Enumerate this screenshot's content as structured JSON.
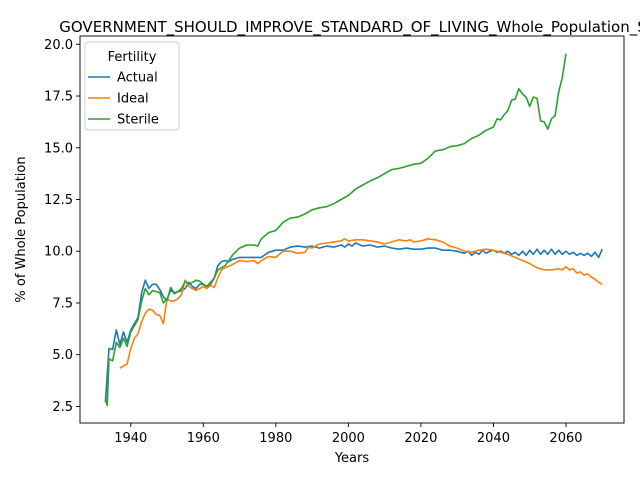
{
  "chart_data": {
    "type": "line",
    "title": "GOVERNMENT_SHOULD_IMPROVE_STANDARD_OF_LIVING_Whole_Population_S",
    "xlabel": "Years",
    "ylabel": "% of Whole Population",
    "xlim": [
      1926,
      2076
    ],
    "ylim": [
      1.7,
      20.4
    ],
    "xticks": [
      1940,
      1960,
      1980,
      2000,
      2020,
      2040,
      2060
    ],
    "yticks": [
      2.5,
      5.0,
      7.5,
      10.0,
      12.5,
      15.0,
      17.5,
      20.0
    ],
    "ytick_labels": [
      "2.5",
      "5.0",
      "7.5",
      "10.0",
      "12.5",
      "15.0",
      "17.5",
      "20.0"
    ],
    "grid": false,
    "legend": {
      "title": "Fertility",
      "placement": "top-left"
    },
    "series": [
      {
        "name": "Actual",
        "color": "#1f77b4",
        "points": [
          [
            1933,
            2.7
          ],
          [
            1934,
            5.3
          ],
          [
            1935,
            5.25
          ],
          [
            1936,
            6.2
          ],
          [
            1937,
            5.5
          ],
          [
            1938,
            6.1
          ],
          [
            1939,
            5.6
          ],
          [
            1940,
            6.2
          ],
          [
            1941,
            6.5
          ],
          [
            1942,
            6.8
          ],
          [
            1943,
            8.0
          ],
          [
            1944,
            8.6
          ],
          [
            1945,
            8.2
          ],
          [
            1946,
            8.4
          ],
          [
            1947,
            8.4
          ],
          [
            1948,
            8.15
          ],
          [
            1949,
            7.8
          ],
          [
            1950,
            7.6
          ],
          [
            1951,
            8.25
          ],
          [
            1952,
            7.95
          ],
          [
            1953,
            8.05
          ],
          [
            1954,
            8.1
          ],
          [
            1955,
            8.2
          ],
          [
            1956,
            8.5
          ],
          [
            1957,
            8.3
          ],
          [
            1958,
            8.2
          ],
          [
            1959,
            8.4
          ],
          [
            1960,
            8.4
          ],
          [
            1961,
            8.3
          ],
          [
            1962,
            8.4
          ],
          [
            1963,
            8.7
          ],
          [
            1964,
            9.3
          ],
          [
            1965,
            9.5
          ],
          [
            1966,
            9.55
          ],
          [
            1967,
            9.5
          ],
          [
            1968,
            9.6
          ],
          [
            1969,
            9.65
          ],
          [
            1970,
            9.7
          ],
          [
            1972,
            9.7
          ],
          [
            1974,
            9.7
          ],
          [
            1976,
            9.7
          ],
          [
            1978,
            9.95
          ],
          [
            1980,
            10.05
          ],
          [
            1982,
            10.05
          ],
          [
            1984,
            10.2
          ],
          [
            1986,
            10.25
          ],
          [
            1988,
            10.2
          ],
          [
            1990,
            10.25
          ],
          [
            1992,
            10.15
          ],
          [
            1994,
            10.25
          ],
          [
            1996,
            10.2
          ],
          [
            1998,
            10.3
          ],
          [
            1999,
            10.2
          ],
          [
            2000,
            10.35
          ],
          [
            2001,
            10.25
          ],
          [
            2002,
            10.4
          ],
          [
            2004,
            10.25
          ],
          [
            2006,
            10.3
          ],
          [
            2008,
            10.2
          ],
          [
            2010,
            10.25
          ],
          [
            2012,
            10.15
          ],
          [
            2014,
            10.1
          ],
          [
            2016,
            10.15
          ],
          [
            2018,
            10.1
          ],
          [
            2020,
            10.1
          ],
          [
            2022,
            10.15
          ],
          [
            2024,
            10.15
          ],
          [
            2026,
            10.05
          ],
          [
            2028,
            10.05
          ],
          [
            2030,
            10.0
          ],
          [
            2031,
            9.95
          ],
          [
            2032,
            9.9
          ],
          [
            2033,
            10.0
          ],
          [
            2034,
            9.8
          ],
          [
            2035,
            9.95
          ],
          [
            2036,
            9.85
          ],
          [
            2037,
            10.05
          ],
          [
            2038,
            9.9
          ],
          [
            2039,
            10.0
          ],
          [
            2040,
            10.05
          ],
          [
            2041,
            9.95
          ],
          [
            2042,
            10.0
          ],
          [
            2043,
            9.9
          ],
          [
            2044,
            10.0
          ],
          [
            2045,
            9.85
          ],
          [
            2046,
            9.95
          ],
          [
            2047,
            9.8
          ],
          [
            2048,
            10.0
          ],
          [
            2049,
            9.8
          ],
          [
            2050,
            10.05
          ],
          [
            2051,
            9.85
          ],
          [
            2052,
            10.1
          ],
          [
            2053,
            9.85
          ],
          [
            2054,
            10.05
          ],
          [
            2055,
            9.85
          ],
          [
            2056,
            10.1
          ],
          [
            2057,
            9.85
          ],
          [
            2058,
            10.05
          ],
          [
            2059,
            9.85
          ],
          [
            2060,
            10.0
          ],
          [
            2061,
            9.85
          ],
          [
            2062,
            9.95
          ],
          [
            2063,
            9.8
          ],
          [
            2064,
            9.9
          ],
          [
            2065,
            9.8
          ],
          [
            2066,
            9.9
          ],
          [
            2067,
            9.75
          ],
          [
            2068,
            9.95
          ],
          [
            2069,
            9.7
          ],
          [
            2070,
            10.1
          ]
        ]
      },
      {
        "name": "Ideal",
        "color": "#ff7f0e",
        "points": [
          [
            1937,
            4.35
          ],
          [
            1938,
            4.45
          ],
          [
            1939,
            4.55
          ],
          [
            1940,
            5.3
          ],
          [
            1941,
            5.8
          ],
          [
            1942,
            6.0
          ],
          [
            1943,
            6.6
          ],
          [
            1944,
            7.0
          ],
          [
            1945,
            7.2
          ],
          [
            1946,
            7.15
          ],
          [
            1947,
            6.95
          ],
          [
            1948,
            6.9
          ],
          [
            1949,
            6.5
          ],
          [
            1950,
            7.7
          ],
          [
            1951,
            7.6
          ],
          [
            1952,
            7.6
          ],
          [
            1953,
            7.7
          ],
          [
            1954,
            7.9
          ],
          [
            1955,
            8.6
          ],
          [
            1956,
            8.3
          ],
          [
            1957,
            8.2
          ],
          [
            1958,
            8.1
          ],
          [
            1959,
            8.2
          ],
          [
            1960,
            8.3
          ],
          [
            1961,
            8.2
          ],
          [
            1962,
            8.35
          ],
          [
            1963,
            8.25
          ],
          [
            1964,
            8.7
          ],
          [
            1965,
            9.1
          ],
          [
            1966,
            9.2
          ],
          [
            1968,
            9.35
          ],
          [
            1970,
            9.55
          ],
          [
            1972,
            9.5
          ],
          [
            1974,
            9.55
          ],
          [
            1975,
            9.4
          ],
          [
            1976,
            9.55
          ],
          [
            1978,
            9.75
          ],
          [
            1980,
            9.7
          ],
          [
            1982,
            10.0
          ],
          [
            1984,
            10.0
          ],
          [
            1986,
            9.9
          ],
          [
            1988,
            9.95
          ],
          [
            1989,
            10.2
          ],
          [
            1990,
            10.15
          ],
          [
            1992,
            10.35
          ],
          [
            1994,
            10.4
          ],
          [
            1996,
            10.45
          ],
          [
            1998,
            10.5
          ],
          [
            1999,
            10.6
          ],
          [
            2000,
            10.5
          ],
          [
            2002,
            10.55
          ],
          [
            2004,
            10.55
          ],
          [
            2006,
            10.5
          ],
          [
            2008,
            10.45
          ],
          [
            2010,
            10.35
          ],
          [
            2012,
            10.45
          ],
          [
            2014,
            10.55
          ],
          [
            2016,
            10.5
          ],
          [
            2017,
            10.55
          ],
          [
            2018,
            10.45
          ],
          [
            2020,
            10.5
          ],
          [
            2022,
            10.6
          ],
          [
            2024,
            10.55
          ],
          [
            2026,
            10.45
          ],
          [
            2028,
            10.25
          ],
          [
            2030,
            10.15
          ],
          [
            2032,
            10.0
          ],
          [
            2034,
            9.95
          ],
          [
            2036,
            10.05
          ],
          [
            2038,
            10.1
          ],
          [
            2040,
            10.05
          ],
          [
            2042,
            9.95
          ],
          [
            2044,
            9.85
          ],
          [
            2046,
            9.7
          ],
          [
            2048,
            9.55
          ],
          [
            2050,
            9.4
          ],
          [
            2052,
            9.2
          ],
          [
            2054,
            9.1
          ],
          [
            2056,
            9.1
          ],
          [
            2058,
            9.15
          ],
          [
            2059,
            9.1
          ],
          [
            2060,
            9.25
          ],
          [
            2061,
            9.1
          ],
          [
            2062,
            9.15
          ],
          [
            2063,
            8.95
          ],
          [
            2064,
            9.0
          ],
          [
            2065,
            8.85
          ],
          [
            2066,
            8.9
          ],
          [
            2067,
            8.75
          ],
          [
            2068,
            8.65
          ],
          [
            2069,
            8.5
          ],
          [
            2070,
            8.4
          ]
        ]
      },
      {
        "name": "Sterile",
        "color": "#2ca02c",
        "points": [
          [
            1933,
            2.9
          ],
          [
            1933.5,
            2.55
          ],
          [
            1934,
            4.8
          ],
          [
            1935,
            4.7
          ],
          [
            1936,
            5.6
          ],
          [
            1937,
            5.35
          ],
          [
            1938,
            5.8
          ],
          [
            1939,
            5.4
          ],
          [
            1940,
            6.1
          ],
          [
            1941,
            6.4
          ],
          [
            1942,
            6.7
          ],
          [
            1943,
            7.6
          ],
          [
            1944,
            8.2
          ],
          [
            1945,
            7.9
          ],
          [
            1946,
            8.1
          ],
          [
            1947,
            8.05
          ],
          [
            1948,
            8.0
          ],
          [
            1949,
            7.5
          ],
          [
            1950,
            7.7
          ],
          [
            1951,
            8.1
          ],
          [
            1952,
            8.0
          ],
          [
            1953,
            8.05
          ],
          [
            1954,
            8.2
          ],
          [
            1955,
            8.55
          ],
          [
            1956,
            8.4
          ],
          [
            1957,
            8.5
          ],
          [
            1958,
            8.6
          ],
          [
            1959,
            8.55
          ],
          [
            1960,
            8.4
          ],
          [
            1961,
            8.3
          ],
          [
            1962,
            8.5
          ],
          [
            1963,
            8.7
          ],
          [
            1964,
            9.1
          ],
          [
            1966,
            9.3
          ],
          [
            1968,
            9.8
          ],
          [
            1970,
            10.15
          ],
          [
            1972,
            10.3
          ],
          [
            1974,
            10.3
          ],
          [
            1975,
            10.25
          ],
          [
            1976,
            10.6
          ],
          [
            1978,
            10.9
          ],
          [
            1980,
            11.0
          ],
          [
            1982,
            11.4
          ],
          [
            1984,
            11.6
          ],
          [
            1986,
            11.65
          ],
          [
            1988,
            11.8
          ],
          [
            1990,
            12.0
          ],
          [
            1992,
            12.1
          ],
          [
            1994,
            12.15
          ],
          [
            1996,
            12.3
          ],
          [
            1998,
            12.5
          ],
          [
            2000,
            12.7
          ],
          [
            2002,
            13.0
          ],
          [
            2004,
            13.2
          ],
          [
            2006,
            13.4
          ],
          [
            2008,
            13.55
          ],
          [
            2010,
            13.75
          ],
          [
            2012,
            13.95
          ],
          [
            2014,
            14.0
          ],
          [
            2016,
            14.1
          ],
          [
            2018,
            14.2
          ],
          [
            2020,
            14.25
          ],
          [
            2022,
            14.5
          ],
          [
            2024,
            14.85
          ],
          [
            2026,
            14.9
          ],
          [
            2028,
            15.05
          ],
          [
            2030,
            15.1
          ],
          [
            2032,
            15.2
          ],
          [
            2034,
            15.45
          ],
          [
            2036,
            15.6
          ],
          [
            2038,
            15.85
          ],
          [
            2040,
            16.0
          ],
          [
            2041,
            16.4
          ],
          [
            2042,
            16.35
          ],
          [
            2043,
            16.6
          ],
          [
            2044,
            16.8
          ],
          [
            2045,
            17.3
          ],
          [
            2046,
            17.35
          ],
          [
            2047,
            17.85
          ],
          [
            2048,
            17.6
          ],
          [
            2049,
            17.45
          ],
          [
            2050,
            17.0
          ],
          [
            2051,
            17.45
          ],
          [
            2052,
            17.4
          ],
          [
            2053,
            16.3
          ],
          [
            2054,
            16.25
          ],
          [
            2055,
            15.9
          ],
          [
            2056,
            16.4
          ],
          [
            2057,
            16.55
          ],
          [
            2058,
            17.7
          ],
          [
            2059,
            18.4
          ],
          [
            2060,
            19.55
          ]
        ]
      }
    ]
  }
}
